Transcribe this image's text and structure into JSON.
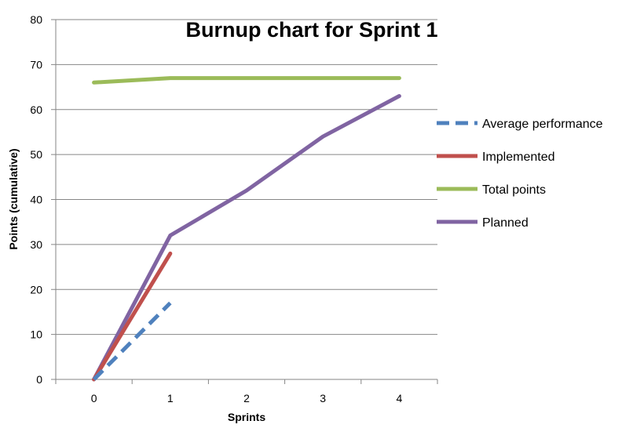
{
  "chart_data": {
    "type": "line",
    "title": "Burnup chart for Sprint 1",
    "xlabel": "Sprints",
    "ylabel": "Points (cumulative)",
    "categories": [
      "0",
      "1",
      "2",
      "3",
      "4"
    ],
    "ylim": [
      0,
      80
    ],
    "yticks": [
      0,
      10,
      20,
      30,
      40,
      50,
      60,
      70,
      80
    ],
    "grid": "horizontal",
    "legend_position": "right",
    "series": [
      {
        "name": "Average performance",
        "color": "#4f81bd",
        "style": "dashed",
        "x": [
          0,
          1
        ],
        "values": [
          0,
          17
        ]
      },
      {
        "name": "Implemented",
        "color": "#c0504d",
        "style": "solid",
        "x": [
          0,
          1
        ],
        "values": [
          0,
          28
        ]
      },
      {
        "name": "Total points",
        "color": "#9bbb59",
        "style": "solid",
        "x": [
          0,
          1,
          2,
          3,
          4
        ],
        "values": [
          66,
          67,
          67,
          67,
          67
        ]
      },
      {
        "name": "Planned",
        "color": "#8064a2",
        "style": "solid",
        "x": [
          0,
          1,
          2,
          3,
          4
        ],
        "values": [
          0,
          32,
          42,
          54,
          63
        ]
      }
    ]
  }
}
